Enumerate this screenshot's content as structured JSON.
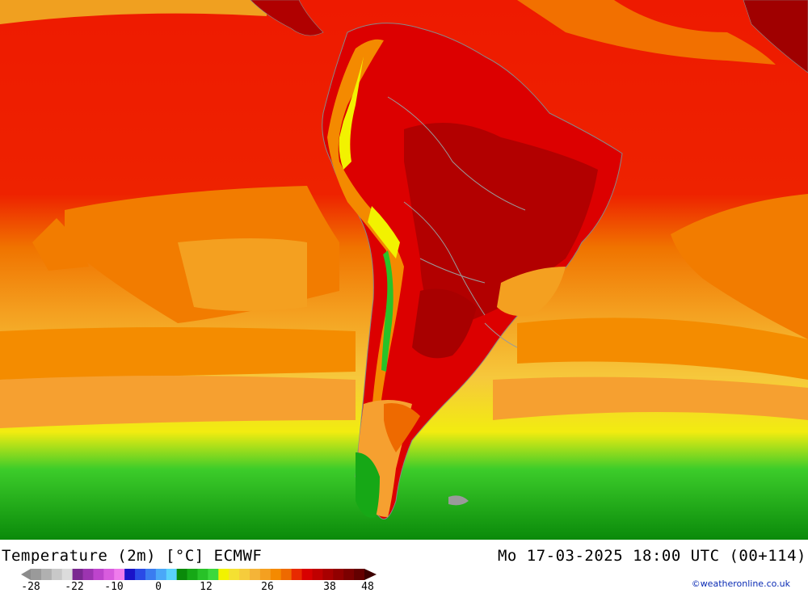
{
  "map": {
    "title": "Temperature (2m) [°C] ECMWF",
    "datetime": "Mo 17-03-2025 18:00 UTC (00+114)",
    "credit": "©weatheronline.co.uk",
    "legend": {
      "tick_labels": [
        "-28",
        "-22",
        "-10",
        "0",
        "12",
        "26",
        "38",
        "48"
      ],
      "colors": [
        "#9a9a9a",
        "#b0b0b0",
        "#c8c8c8",
        "#dcdcdc",
        "#7a2890",
        "#9c34b0",
        "#bd44cc",
        "#d85cde",
        "#ef7cec",
        "#1a12c8",
        "#2a4ae6",
        "#3a7cf0",
        "#4aa8f8",
        "#5ad2fc",
        "#0a8a0a",
        "#16a816",
        "#28c228",
        "#3cd83c",
        "#f2f200",
        "#f4e032",
        "#f6cc3c",
        "#f4b438",
        "#f4a020",
        "#f48a00",
        "#ee6a00",
        "#e82a00",
        "#d80000",
        "#c00000",
        "#a80000",
        "#920000",
        "#7c0000",
        "#640000"
      ]
    }
  }
}
